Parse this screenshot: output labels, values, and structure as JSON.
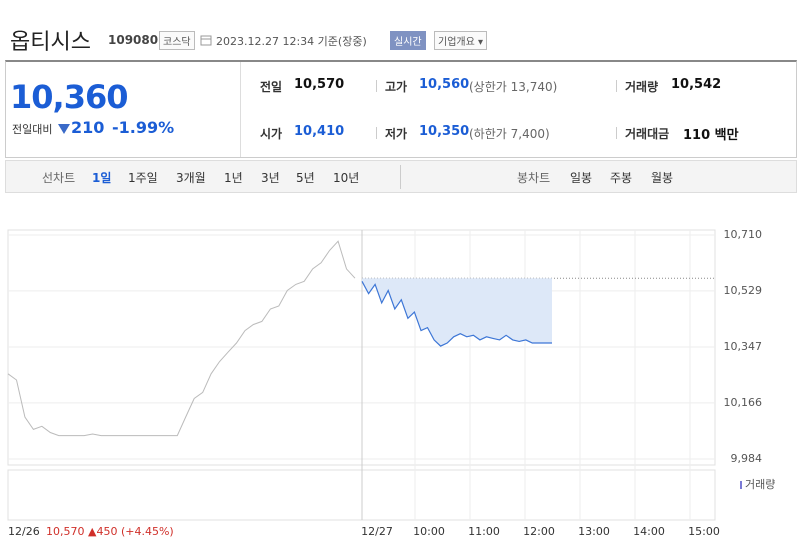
{
  "header": {
    "name": "옵티시스",
    "code": "109080",
    "market": "코스닥",
    "datetime": "2023.12.27 12:34 기준(장중)",
    "realtime": "실시간",
    "company_info": "기업개요"
  },
  "quote": {
    "price": "10,360",
    "change_label": "전일대비",
    "change": "210",
    "change_pct": "-1.99%",
    "fields": [
      {
        "label": "전일",
        "value": "10,570"
      },
      {
        "label": "고가",
        "value": "10,560",
        "note": "(상한가 13,740)"
      },
      {
        "label": "거래량",
        "value": "10,542"
      },
      {
        "label": "시가",
        "value": "10,410"
      },
      {
        "label": "저가",
        "value": "10,350",
        "note": "(하한가 7,400)"
      },
      {
        "label": "거래대금",
        "value": "110 백만"
      }
    ]
  },
  "tabs": {
    "line_chart": "선차트",
    "line_periods": [
      "1일",
      "1주일",
      "3개월",
      "1년",
      "3년",
      "5년",
      "10년"
    ],
    "candle_chart": "봉차트",
    "candle_periods": [
      "일봉",
      "주봉",
      "월봉"
    ]
  },
  "chart": {
    "type": "line",
    "ylim": [
      9984,
      10710
    ],
    "yticks": [
      {
        "value": 10710,
        "label": "10,710"
      },
      {
        "value": 10529,
        "label": "10,529"
      },
      {
        "value": 10347,
        "label": "10,347"
      },
      {
        "value": 10166,
        "label": "10,166"
      },
      {
        "value": 9984,
        "label": "9,984"
      }
    ],
    "reference": 10570,
    "prev_day_label": "12/26",
    "prev_day_note": "10,570 ▲450 (+4.45%)",
    "xticks": [
      "12/27",
      "10:00",
      "11:00",
      "12:00",
      "13:00",
      "14:00",
      "15:00"
    ],
    "volume_legend": "거래량",
    "prev_day": [
      10260,
      10240,
      10120,
      10080,
      10090,
      10070,
      10060,
      10060,
      10060,
      10060,
      10065,
      10060,
      10060,
      10060,
      10060,
      10060,
      10060,
      10060,
      10060,
      10060,
      10060,
      10120,
      10180,
      10200,
      10260,
      10300,
      10330,
      10360,
      10400,
      10420,
      10430,
      10470,
      10480,
      10530,
      10550,
      10560,
      10600,
      10620,
      10660,
      10690,
      10600,
      10570
    ],
    "today": [
      10560,
      10520,
      10550,
      10490,
      10530,
      10470,
      10500,
      10440,
      10460,
      10400,
      10410,
      10370,
      10350,
      10360,
      10380,
      10390,
      10380,
      10385,
      10370,
      10380,
      10375,
      10370,
      10385,
      10370,
      10365,
      10370,
      10360,
      10360,
      10360,
      10360
    ]
  }
}
